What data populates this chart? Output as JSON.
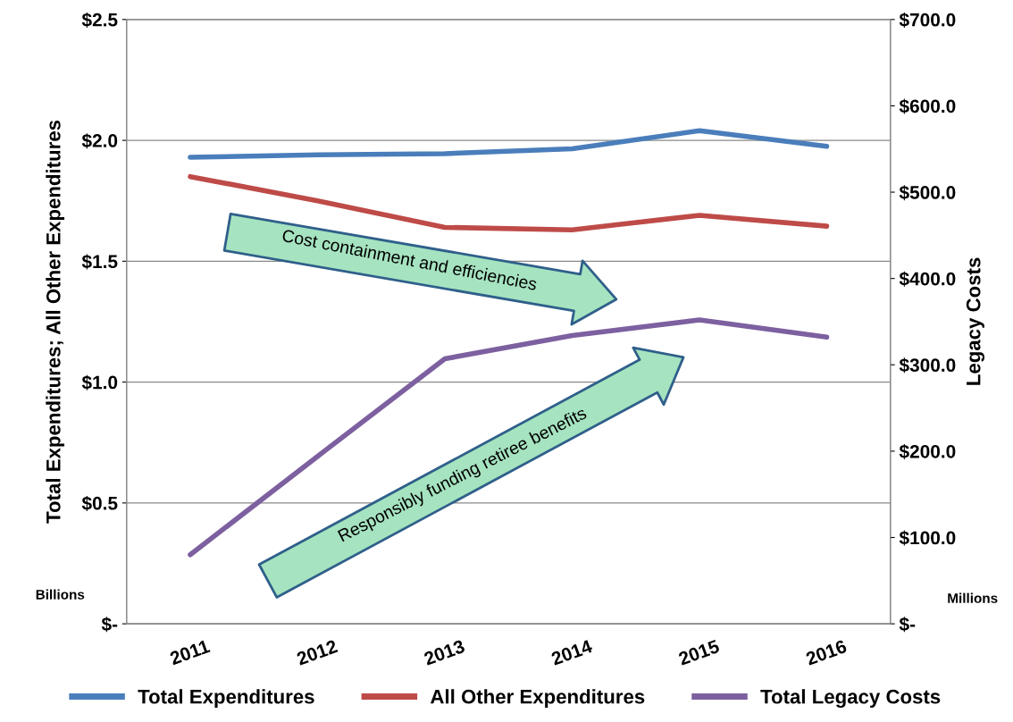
{
  "chart_data": {
    "type": "line",
    "categories": [
      "2011",
      "2012",
      "2013",
      "2014",
      "2015",
      "2016"
    ],
    "ylabel": "Total Expenditures; All Other Expenditures",
    "y2label": "Legacy Costs",
    "series": [
      {
        "name": "Total Expenditures",
        "color": "#4a7ebb",
        "values": [
          1.93,
          1.94,
          1.945,
          1.965,
          2.04,
          1.975
        ]
      },
      {
        "name": "All Other Expenditures",
        "color": "#be4b48",
        "values": [
          1.85,
          1.75,
          1.64,
          1.63,
          1.69,
          1.645
        ]
      },
      {
        "name": "Total Legacy Costs",
        "color": "#7d60a0",
        "axis": "y2",
        "values": [
          80,
          194,
          307,
          334,
          352,
          332
        ]
      }
    ],
    "ylim": [
      0,
      2.5
    ],
    "yticks": [
      {
        "value": 0,
        "label": "$-"
      },
      {
        "value": 0.5,
        "label": "$0.5"
      },
      {
        "value": 1.0,
        "label": "$1.0"
      },
      {
        "value": 1.5,
        "label": "$1.5"
      },
      {
        "value": 2.0,
        "label": "$2.0"
      },
      {
        "value": 2.5,
        "label": "$2.5"
      }
    ],
    "y2lim": [
      0,
      700
    ],
    "y2ticks": [
      {
        "value": 0,
        "label": "$-"
      },
      {
        "value": 100,
        "label": "$100.0"
      },
      {
        "value": 200,
        "label": "$200.0"
      },
      {
        "value": 300,
        "label": "$300.0"
      },
      {
        "value": 400,
        "label": "$400.0"
      },
      {
        "value": 500,
        "label": "$500.0"
      },
      {
        "value": 600,
        "label": "$600.0"
      },
      {
        "value": 700,
        "label": "$700.0"
      }
    ],
    "grid": "y",
    "legend": "bottom",
    "marker": "none",
    "line_style": "solid",
    "annotations": [
      "Cost containment and efficiencies",
      "Responsibly funding retiree benefits",
      "Billions",
      "Millions"
    ]
  }
}
